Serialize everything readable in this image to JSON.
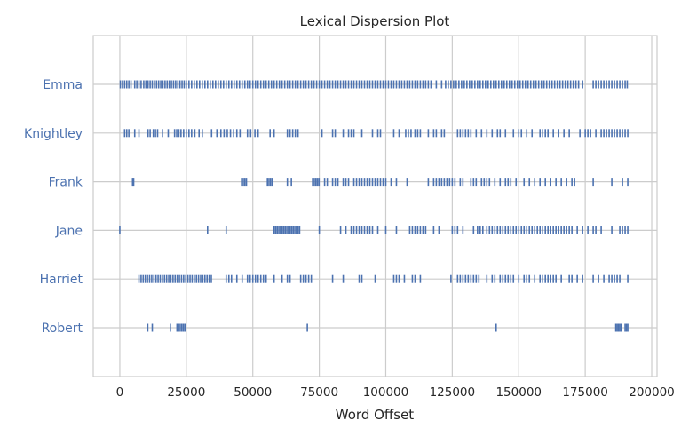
{
  "chart_data": {
    "type": "scatter",
    "title": "Lexical Dispersion Plot",
    "xlabel": "Word Offset",
    "ylabel": "",
    "xlim": [
      -10000,
      202000
    ],
    "xticks": [
      0,
      25000,
      50000,
      75000,
      100000,
      125000,
      150000,
      175000,
      200000
    ],
    "xtick_labels": [
      "0",
      "25000",
      "50000",
      "75000",
      "100000",
      "125000",
      "150000",
      "175000",
      "200000"
    ],
    "grid": true,
    "marker": "|",
    "categories": [
      "Emma",
      "Knightley",
      "Frank",
      "Jane",
      "Harriet",
      "Robert"
    ],
    "series": [
      {
        "name": "Emma",
        "x": [
          200,
          1000,
          1800,
          2600,
          3400,
          4200,
          5600,
          6400,
          7200,
          8000,
          9000,
          9800,
          10600,
          11400,
          12200,
          13000,
          13800,
          14600,
          15400,
          16200,
          17000,
          17800,
          18600,
          19400,
          20200,
          21000,
          21800,
          22600,
          23400,
          24200,
          25000,
          26000,
          27000,
          28000,
          29000,
          30000,
          31000,
          32000,
          33000,
          34000,
          35000,
          36000,
          37000,
          38000,
          39000,
          40000,
          41000,
          42000,
          43000,
          44000,
          45000,
          46000,
          47000,
          48000,
          49000,
          50000,
          51000,
          52000,
          53000,
          54000,
          55000,
          56000,
          57000,
          58000,
          59000,
          60000,
          61000,
          62000,
          63000,
          64000,
          65000,
          66000,
          67000,
          68000,
          69000,
          70000,
          71000,
          72000,
          73000,
          74000,
          75000,
          76000,
          77000,
          78000,
          79000,
          80000,
          81000,
          82000,
          83000,
          84000,
          85000,
          86000,
          87000,
          88000,
          89000,
          90000,
          91000,
          92000,
          93000,
          94000,
          95000,
          96000,
          97000,
          98000,
          99000,
          100000,
          101000,
          102000,
          103000,
          104000,
          105000,
          106000,
          107000,
          108000,
          109000,
          110000,
          111000,
          112000,
          113000,
          114000,
          115000,
          116000,
          117000,
          119000,
          121000,
          122500,
          123500,
          124500,
          125500,
          126500,
          127500,
          128500,
          129500,
          130500,
          131500,
          132500,
          133500,
          134500,
          135500,
          136500,
          137500,
          138500,
          139500,
          140500,
          141500,
          142500,
          143500,
          144500,
          145500,
          146500,
          147500,
          148500,
          149500,
          150500,
          151500,
          152500,
          153500,
          154500,
          155500,
          156500,
          157500,
          158500,
          159500,
          160500,
          161500,
          162500,
          163500,
          164500,
          165500,
          166500,
          167500,
          168500,
          169500,
          170500,
          171500,
          172500,
          174000,
          178000,
          179000,
          180000,
          181000,
          182000,
          183000,
          184000,
          185000,
          186000,
          187000,
          188000,
          189000,
          190000,
          190800
        ]
      },
      {
        "name": "Knightley",
        "x": [
          1800,
          2600,
          3400,
          5600,
          7200,
          10600,
          11400,
          12600,
          13400,
          14200,
          16000,
          18200,
          20600,
          21400,
          22200,
          23000,
          24000,
          25000,
          26000,
          27000,
          28200,
          29800,
          31000,
          34500,
          36500,
          38000,
          39200,
          40400,
          41600,
          42800,
          44000,
          45200,
          48000,
          49200,
          50800,
          52000,
          56500,
          58000,
          63000,
          64000,
          65000,
          66000,
          67000,
          76000,
          80000,
          81000,
          84000,
          86000,
          87000,
          88000,
          91000,
          95000,
          97000,
          98000,
          103000,
          105000,
          107500,
          108500,
          109500,
          111000,
          112000,
          113000,
          116000,
          118000,
          119000,
          121000,
          122000,
          127000,
          128000,
          129000,
          130000,
          131000,
          132000,
          134000,
          136000,
          138000,
          140000,
          142000,
          143000,
          145000,
          148000,
          150000,
          151000,
          153000,
          155000,
          158000,
          159000,
          160000,
          161000,
          163000,
          165000,
          167000,
          169000,
          173000,
          175000,
          176000,
          177000,
          179000,
          181000,
          182000,
          183000,
          184000,
          185000,
          186000,
          187000,
          188000,
          189000,
          190000,
          191000
        ]
      },
      {
        "name": "Frank",
        "x": [
          4800,
          5200,
          45800,
          46400,
          47000,
          47600,
          55500,
          56100,
          56700,
          57300,
          63000,
          64500,
          72500,
          73100,
          73700,
          74300,
          74900,
          77000,
          78000,
          80000,
          81000,
          82000,
          84000,
          85000,
          86000,
          88000,
          89000,
          90000,
          91000,
          92000,
          93000,
          94000,
          95000,
          96000,
          97000,
          98000,
          99000,
          100000,
          102000,
          104000,
          108000,
          116000,
          118000,
          119000,
          120000,
          121000,
          122000,
          123000,
          124000,
          125000,
          126000,
          128000,
          129000,
          132000,
          133000,
          134000,
          136000,
          137000,
          138000,
          139000,
          141000,
          143000,
          145000,
          146000,
          147000,
          149000,
          152000,
          154000,
          156000,
          158000,
          160000,
          162000,
          164000,
          166000,
          168000,
          170000,
          171000,
          178000,
          185000,
          189000,
          191000
        ]
      },
      {
        "name": "Jane",
        "x": [
          0,
          33000,
          40000,
          58000,
          58600,
          59200,
          59800,
          60400,
          61000,
          61600,
          62200,
          62800,
          63400,
          64000,
          64600,
          65200,
          65800,
          66400,
          67000,
          67600,
          75000,
          83000,
          85000,
          87000,
          88000,
          89000,
          90000,
          91000,
          92000,
          93000,
          94000,
          95000,
          97000,
          100000,
          104000,
          109000,
          110000,
          111000,
          112000,
          113000,
          114000,
          115000,
          118000,
          120000,
          125000,
          126000,
          127000,
          129000,
          133000,
          134500,
          135500,
          136500,
          138000,
          139000,
          140000,
          141000,
          142000,
          143000,
          144000,
          145000,
          146000,
          147000,
          148000,
          149000,
          150000,
          151000,
          152000,
          153000,
          154000,
          155000,
          156000,
          157000,
          158000,
          159000,
          160000,
          161000,
          162000,
          163000,
          164000,
          165000,
          166000,
          167000,
          168000,
          169000,
          170000,
          172000,
          174000,
          176000,
          178000,
          179000,
          181000,
          185000,
          188000,
          189000,
          190000,
          191000
        ]
      },
      {
        "name": "Harriet",
        "x": [
          7200,
          8000,
          8800,
          9600,
          10400,
          11200,
          12000,
          12800,
          13600,
          14400,
          15200,
          16000,
          16800,
          17600,
          18400,
          19200,
          20000,
          20800,
          21600,
          22400,
          23200,
          24000,
          24800,
          25600,
          26400,
          27200,
          28000,
          28800,
          29600,
          30400,
          31200,
          32000,
          32800,
          33600,
          34400,
          40000,
          41000,
          42000,
          44000,
          46000,
          48000,
          49000,
          50000,
          51000,
          52000,
          53000,
          54000,
          55000,
          58000,
          61000,
          63000,
          64000,
          68000,
          69000,
          70000,
          71000,
          72000,
          80000,
          84000,
          90000,
          91000,
          96000,
          103000,
          104000,
          105000,
          107000,
          110000,
          111000,
          113000,
          124500,
          127000,
          128000,
          129000,
          130000,
          131000,
          132000,
          133000,
          134000,
          135000,
          138000,
          140000,
          141000,
          143000,
          144000,
          145000,
          146000,
          147000,
          148000,
          150000,
          152000,
          153000,
          154000,
          156000,
          158000,
          159000,
          160000,
          161000,
          162000,
          163000,
          164000,
          166000,
          169000,
          170000,
          172000,
          174000,
          178000,
          180000,
          182000,
          184000,
          185000,
          186000,
          187000,
          188000,
          191000
        ]
      },
      {
        "name": "Robert",
        "x": [
          10500,
          12200,
          19000,
          21500,
          22100,
          22700,
          23300,
          23900,
          24500,
          70500,
          141500,
          186500,
          187000,
          187500,
          188000,
          188500,
          190000,
          190500,
          191000
        ]
      }
    ]
  }
}
